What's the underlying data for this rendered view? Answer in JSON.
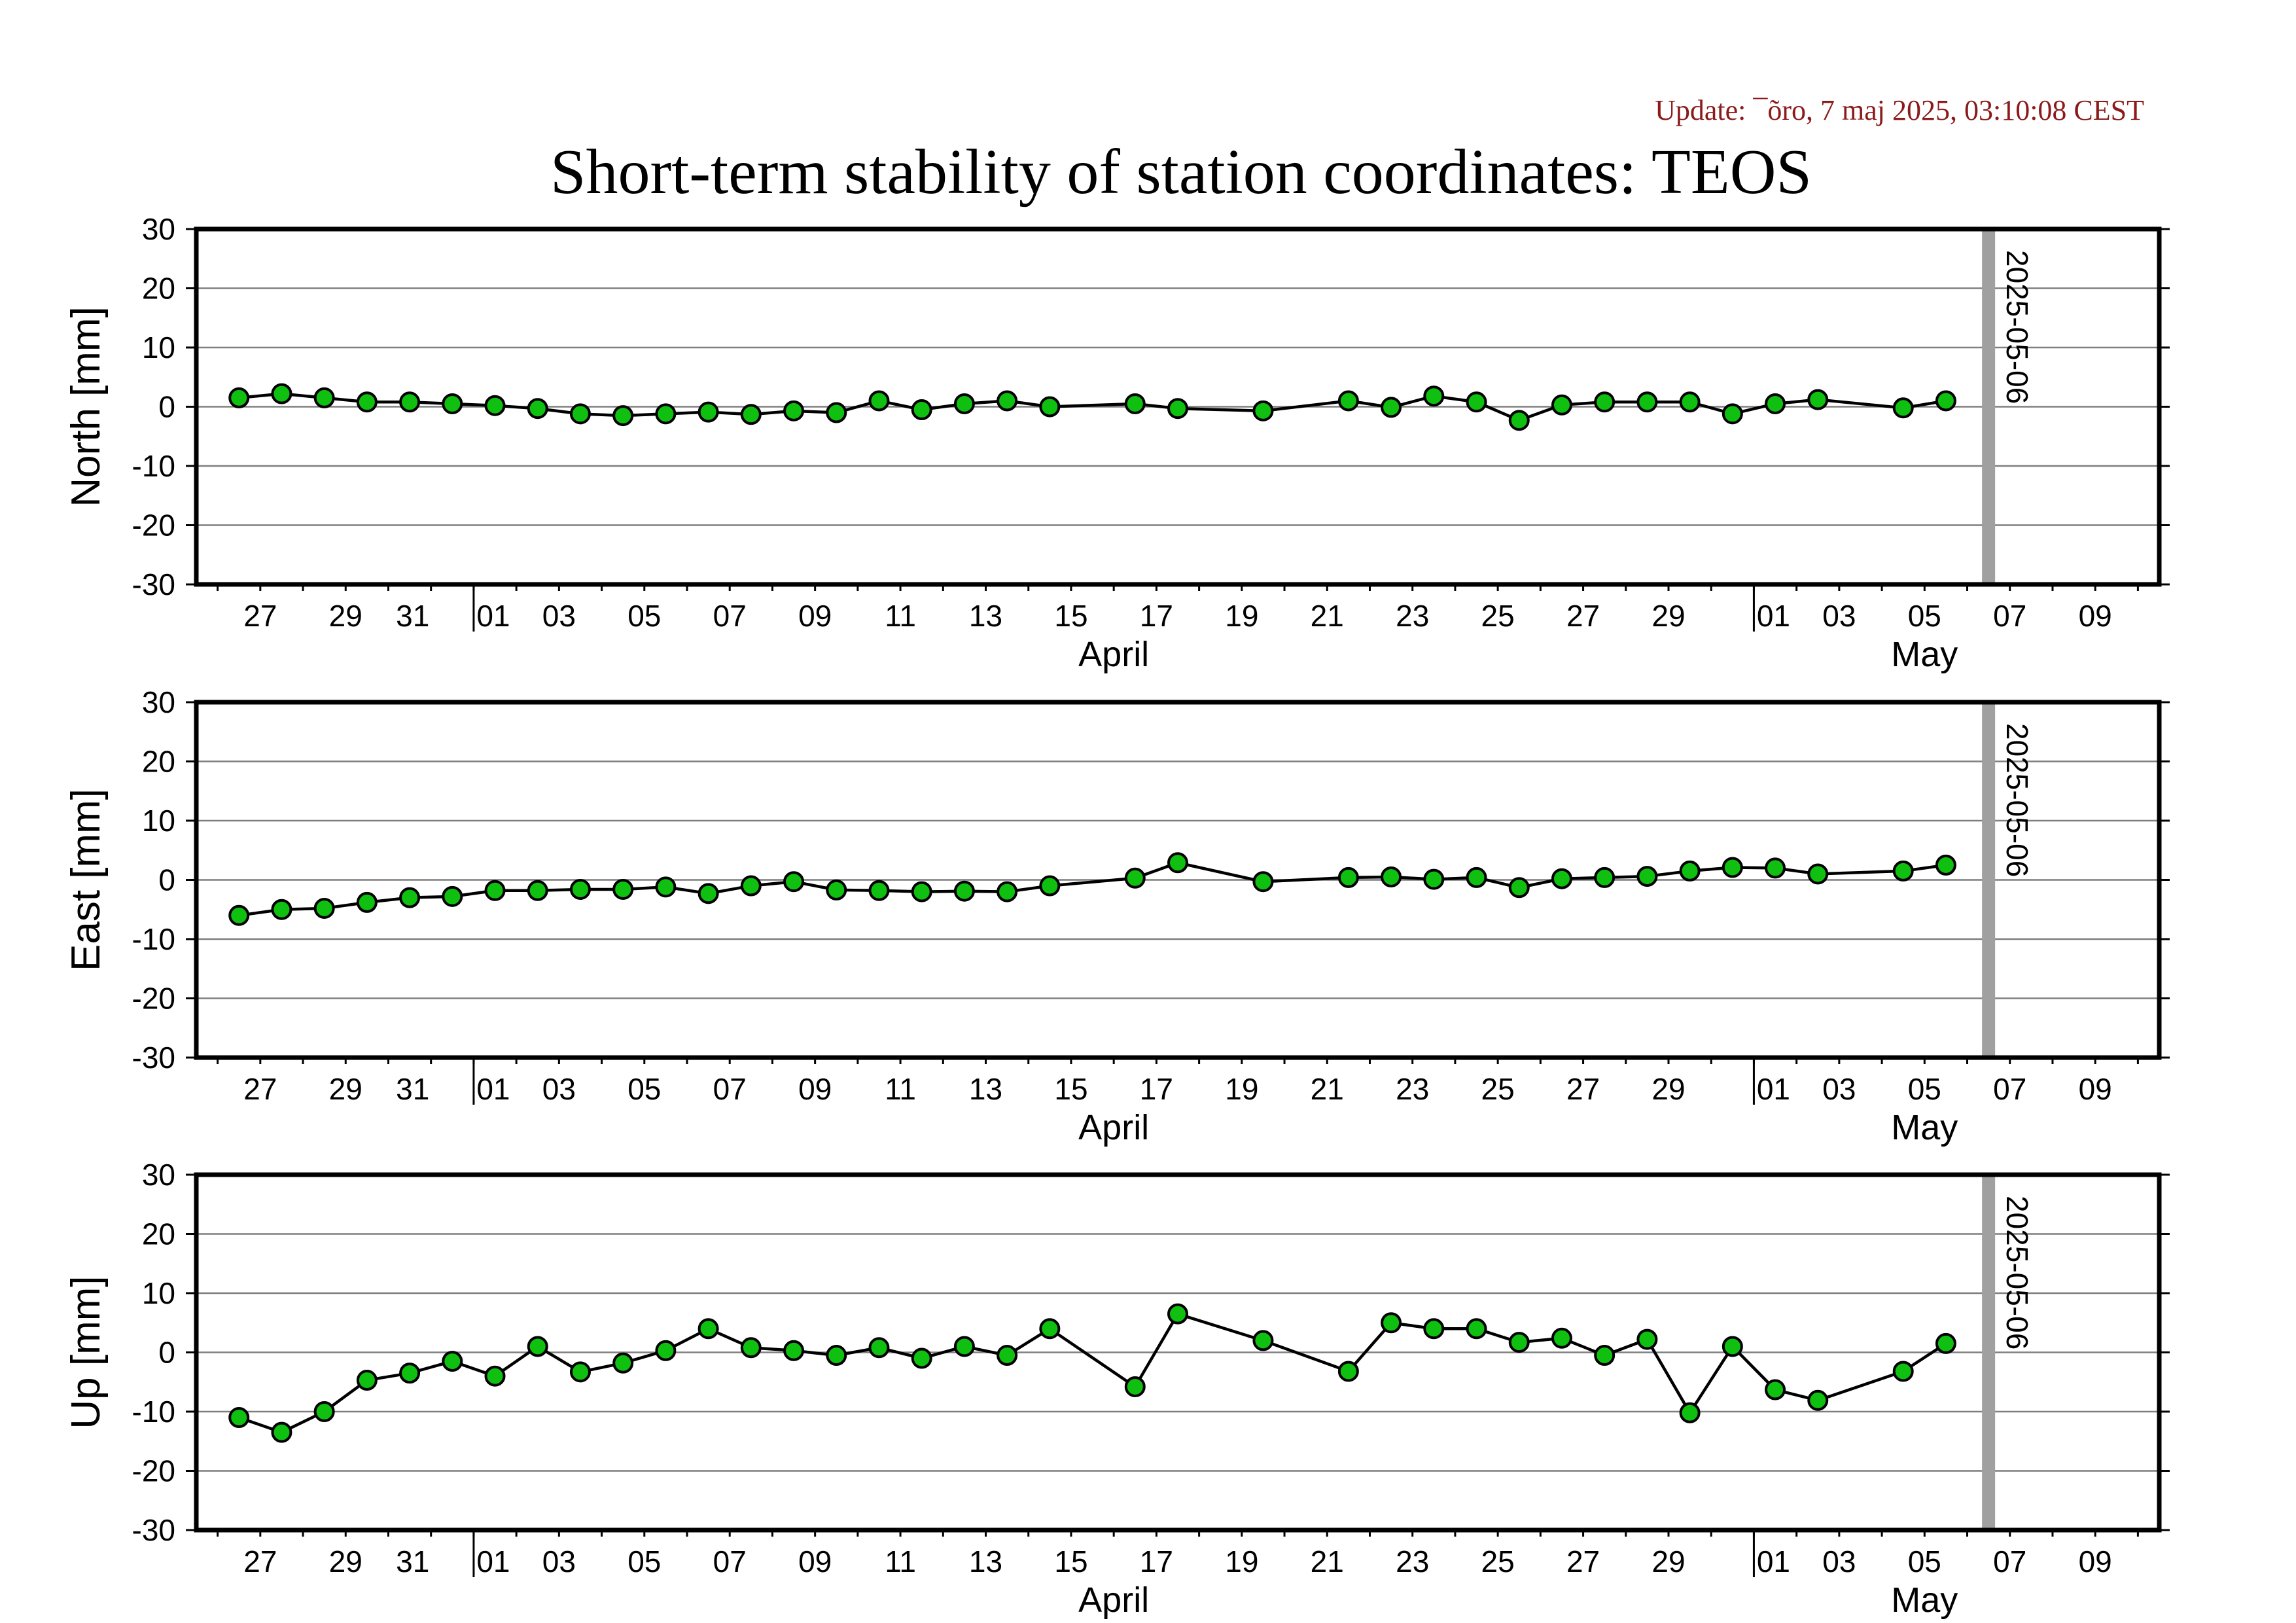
{
  "update_text": "Update: ¯õro, 7 maj 2025, 03:10:08 CEST",
  "title": "Short-term stability of station coordinates: TEOS",
  "marker_date": "2025-05-06",
  "colors": {
    "point_fill": "#10c010",
    "point_stroke": "#000000",
    "line": "#000000",
    "grid": "#7f7f7f",
    "marker": "#a0a0a0",
    "update_text": "#8b1a1a"
  },
  "chart_data": [
    {
      "type": "line",
      "ylabel": "North [mm]",
      "ylim": [
        -30,
        30
      ],
      "yticks": [
        30,
        20,
        10,
        0,
        -10,
        -20,
        -30
      ],
      "xlim": [
        "2025-03-25T12:00",
        "2025-05-10T12:00"
      ],
      "xtick_labels": [
        "27",
        "29",
        "31",
        "01",
        "03",
        "05",
        "07",
        "09",
        "11",
        "13",
        "15",
        "17",
        "19",
        "21",
        "23",
        "25",
        "27",
        "29",
        "01",
        "03",
        "05",
        "07",
        "09"
      ],
      "months": [
        "April",
        "May"
      ],
      "grid": true,
      "series": [
        {
          "x": [
            "2025-03-26",
            "2025-03-27",
            "2025-03-28",
            "2025-03-29",
            "2025-03-30",
            "2025-03-31",
            "2025-04-01",
            "2025-04-02",
            "2025-04-03",
            "2025-04-04",
            "2025-04-05",
            "2025-04-06",
            "2025-04-07",
            "2025-04-08",
            "2025-04-09",
            "2025-04-10",
            "2025-04-11",
            "2025-04-12",
            "2025-04-13",
            "2025-04-14",
            "2025-04-16",
            "2025-04-17",
            "2025-04-19",
            "2025-04-21",
            "2025-04-22",
            "2025-04-23",
            "2025-04-24",
            "2025-04-25",
            "2025-04-26",
            "2025-04-27",
            "2025-04-28",
            "2025-04-29",
            "2025-04-30",
            "2025-05-01",
            "2025-05-02",
            "2025-05-04",
            "2025-05-05"
          ],
          "values": [
            1.5,
            2.2,
            1.5,
            0.8,
            0.8,
            0.5,
            0.2,
            -0.3,
            -1.2,
            -1.5,
            -1.2,
            -0.9,
            -1.3,
            -0.7,
            -1.0,
            1.0,
            -0.5,
            0.5,
            1.0,
            0.0,
            0.5,
            -0.3,
            -0.7,
            1.0,
            -0.1,
            1.8,
            0.8,
            -2.3,
            0.3,
            0.8,
            0.8,
            0.8,
            -1.2,
            0.5,
            1.2,
            -0.2,
            1.0
          ]
        }
      ]
    },
    {
      "type": "line",
      "ylabel": "East [mm]",
      "ylim": [
        -30,
        30
      ],
      "yticks": [
        30,
        20,
        10,
        0,
        -10,
        -20,
        -30
      ],
      "xlim": [
        "2025-03-25T12:00",
        "2025-05-10T12:00"
      ],
      "xtick_labels": [
        "27",
        "29",
        "31",
        "01",
        "03",
        "05",
        "07",
        "09",
        "11",
        "13",
        "15",
        "17",
        "19",
        "21",
        "23",
        "25",
        "27",
        "29",
        "01",
        "03",
        "05",
        "07",
        "09"
      ],
      "months": [
        "April",
        "May"
      ],
      "grid": true,
      "series": [
        {
          "x": [
            "2025-03-26",
            "2025-03-27",
            "2025-03-28",
            "2025-03-29",
            "2025-03-30",
            "2025-03-31",
            "2025-04-01",
            "2025-04-02",
            "2025-04-03",
            "2025-04-04",
            "2025-04-05",
            "2025-04-06",
            "2025-04-07",
            "2025-04-08",
            "2025-04-09",
            "2025-04-10",
            "2025-04-11",
            "2025-04-12",
            "2025-04-13",
            "2025-04-14",
            "2025-04-16",
            "2025-04-17",
            "2025-04-19",
            "2025-04-21",
            "2025-04-22",
            "2025-04-23",
            "2025-04-24",
            "2025-04-25",
            "2025-04-26",
            "2025-04-27",
            "2025-04-28",
            "2025-04-29",
            "2025-04-30",
            "2025-05-01",
            "2025-05-02",
            "2025-05-04",
            "2025-05-05"
          ],
          "values": [
            -6.0,
            -5.0,
            -4.8,
            -3.8,
            -3.0,
            -2.8,
            -1.8,
            -1.8,
            -1.6,
            -1.6,
            -1.2,
            -2.3,
            -1.0,
            -0.3,
            -1.7,
            -1.8,
            -2.0,
            -1.9,
            -2.0,
            -1.0,
            0.3,
            2.9,
            -0.3,
            0.4,
            0.5,
            0.1,
            0.4,
            -1.3,
            0.2,
            0.4,
            0.6,
            1.5,
            2.1,
            2.0,
            1.0,
            1.5,
            2.5
          ]
        }
      ]
    },
    {
      "type": "line",
      "ylabel": "Up [mm]",
      "ylim": [
        -30,
        30
      ],
      "yticks": [
        30,
        20,
        10,
        0,
        -10,
        -20,
        -30
      ],
      "xlim": [
        "2025-03-25T12:00",
        "2025-05-10T12:00"
      ],
      "xtick_labels": [
        "27",
        "29",
        "31",
        "01",
        "03",
        "05",
        "07",
        "09",
        "11",
        "13",
        "15",
        "17",
        "19",
        "21",
        "23",
        "25",
        "27",
        "29",
        "01",
        "03",
        "05",
        "07",
        "09"
      ],
      "months": [
        "April",
        "May"
      ],
      "grid": true,
      "series": [
        {
          "x": [
            "2025-03-26",
            "2025-03-27",
            "2025-03-28",
            "2025-03-29",
            "2025-03-30",
            "2025-03-31",
            "2025-04-01",
            "2025-04-02",
            "2025-04-03",
            "2025-04-04",
            "2025-04-05",
            "2025-04-06",
            "2025-04-07",
            "2025-04-08",
            "2025-04-09",
            "2025-04-10",
            "2025-04-11",
            "2025-04-12",
            "2025-04-13",
            "2025-04-14",
            "2025-04-16",
            "2025-04-17",
            "2025-04-19",
            "2025-04-21",
            "2025-04-22",
            "2025-04-23",
            "2025-04-24",
            "2025-04-25",
            "2025-04-26",
            "2025-04-27",
            "2025-04-28",
            "2025-04-29",
            "2025-04-30",
            "2025-05-01",
            "2025-05-02",
            "2025-05-04",
            "2025-05-05"
          ],
          "values": [
            -11.0,
            -13.5,
            -10.0,
            -4.7,
            -3.5,
            -1.5,
            -4.0,
            1.0,
            -3.3,
            -1.8,
            0.3,
            4.0,
            0.8,
            0.3,
            -0.5,
            0.8,
            -1.0,
            1.0,
            -0.5,
            4.0,
            -5.8,
            6.5,
            2.0,
            -3.2,
            5.0,
            4.0,
            4.0,
            1.7,
            2.4,
            -0.5,
            2.2,
            -10.2,
            1.0,
            -6.3,
            -8.1,
            -3.2,
            1.5
          ]
        }
      ]
    }
  ]
}
